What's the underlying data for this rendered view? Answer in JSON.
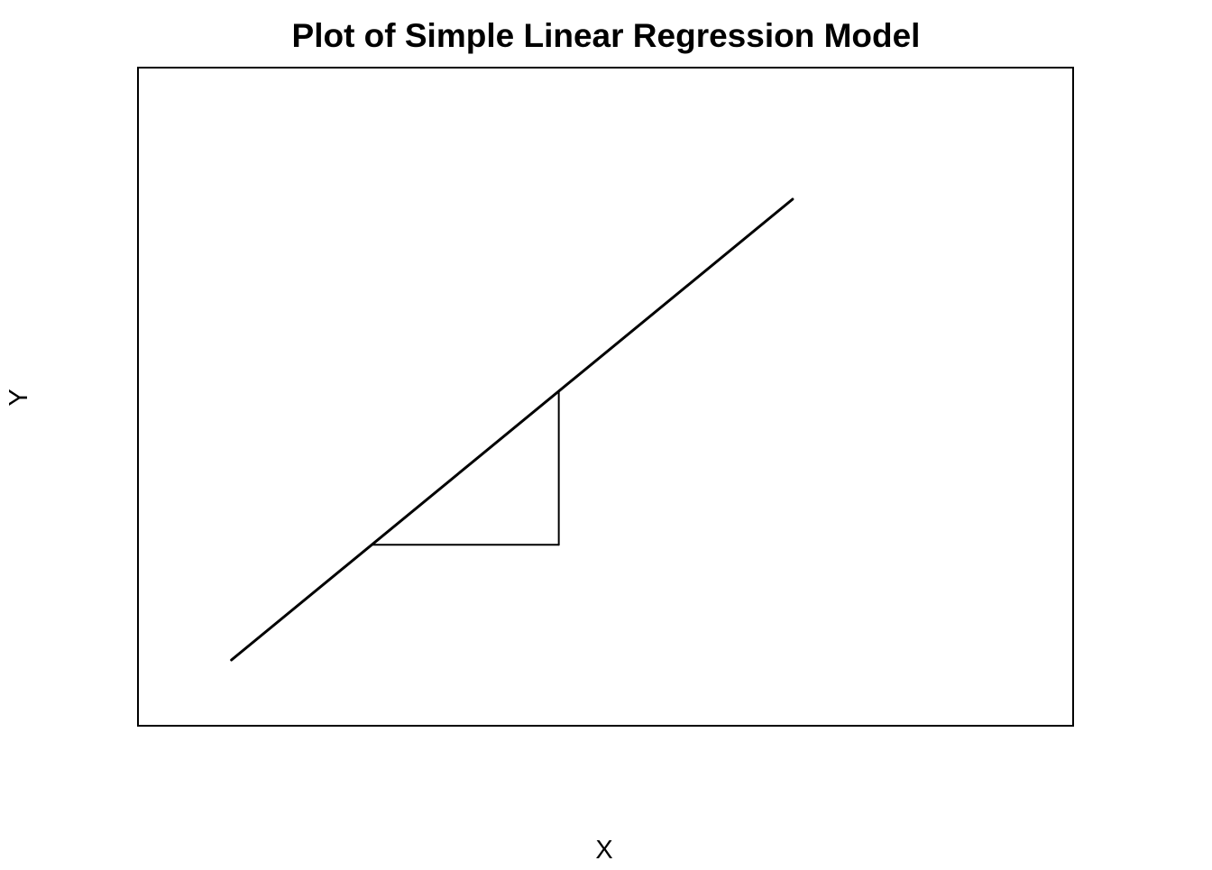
{
  "chart_data": {
    "type": "line",
    "title": "Plot of Simple Linear Regression Model",
    "xlabel": "X",
    "ylabel": "Y",
    "xlim": [
      0,
      10
    ],
    "ylim": [
      0,
      10
    ],
    "axes_shown": false,
    "ticks_shown": false,
    "grid": false,
    "legend": "none",
    "line_color": "#000000",
    "series": [
      {
        "x": [
          1,
          7
        ],
        "y": [
          1,
          8
        ]
      }
    ],
    "slope_triangle": {
      "x_start": 2.5,
      "x_end": 4.5,
      "y_start": 2.75,
      "y_end": 5.08
    }
  }
}
